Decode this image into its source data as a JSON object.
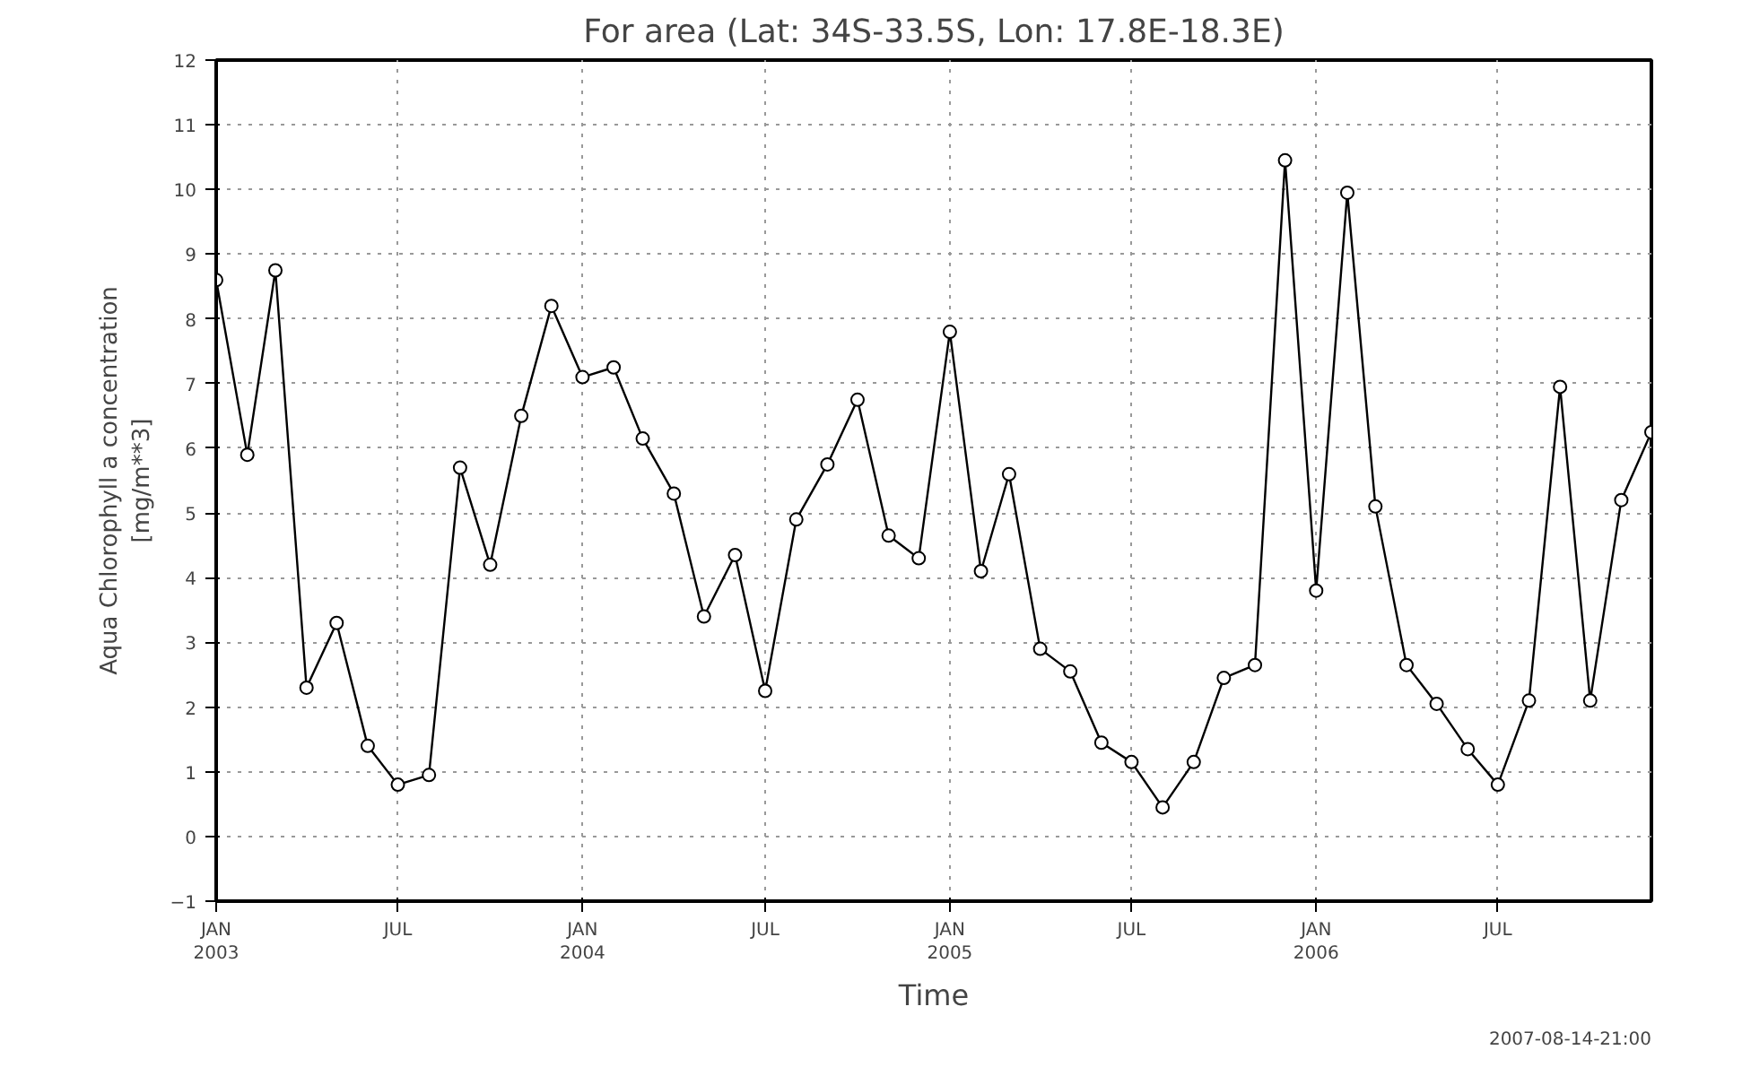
{
  "chart_data": {
    "type": "line",
    "title": "For area (Lat: 34S-33.5S, Lon: 17.8E-18.3E)",
    "xlabel": "Time",
    "ylabel": "Aqua Chlorophyll a concentration\n[mg/m**3]",
    "x": [
      "2003-01",
      "2003-02",
      "2003-03",
      "2003-04",
      "2003-05",
      "2003-06",
      "2003-07",
      "2003-08",
      "2003-09",
      "2003-10",
      "2003-11",
      "2003-12",
      "2004-01",
      "2004-02",
      "2004-03",
      "2004-04",
      "2004-05",
      "2004-06",
      "2004-07",
      "2004-08",
      "2004-09",
      "2004-10",
      "2004-11",
      "2004-12",
      "2005-01",
      "2005-02",
      "2005-03",
      "2005-04",
      "2005-05",
      "2005-06",
      "2005-07",
      "2005-08",
      "2005-09",
      "2005-10",
      "2005-11",
      "2005-12",
      "2006-01",
      "2006-02",
      "2006-03",
      "2006-04",
      "2006-05",
      "2006-06",
      "2006-07",
      "2006-08",
      "2006-09",
      "2006-10",
      "2006-11",
      "2006-12"
    ],
    "series": [
      {
        "color": "#000000",
        "values": [
          8.6,
          5.9,
          8.75,
          2.3,
          3.3,
          1.4,
          0.8,
          0.95,
          5.7,
          4.2,
          6.5,
          8.2,
          7.1,
          7.25,
          6.15,
          5.3,
          3.4,
          4.35,
          2.25,
          4.9,
          5.75,
          6.75,
          4.65,
          4.3,
          7.8,
          4.1,
          5.6,
          2.9,
          2.55,
          1.45,
          1.15,
          0.45,
          1.15,
          2.45,
          2.65,
          10.45,
          3.8,
          9.95,
          5.1,
          2.65,
          2.05,
          1.35,
          0.8,
          2.1,
          6.95,
          2.1,
          5.2,
          6.25
        ]
      }
    ],
    "xlim": [
      "2003-01",
      "2006-12"
    ],
    "xticks": [
      {
        "value": "2003-01",
        "label": "JAN\n2003"
      },
      {
        "value": "2003-07",
        "label": "JUL"
      },
      {
        "value": "2004-01",
        "label": "JAN\n2004"
      },
      {
        "value": "2004-07",
        "label": "JUL"
      },
      {
        "value": "2005-01",
        "label": "JAN\n2005"
      },
      {
        "value": "2005-07",
        "label": "JUL"
      },
      {
        "value": "2006-01",
        "label": "JAN\n2006"
      },
      {
        "value": "2006-07",
        "label": "JUL"
      }
    ],
    "ylim": [
      -1,
      12
    ],
    "yticks": [
      -1,
      0,
      1,
      2,
      3,
      4,
      5,
      6,
      7,
      8,
      9,
      10,
      11,
      12
    ],
    "grid": true,
    "marker": "circle",
    "line_style": "solid",
    "annotations": [
      "2007-08-14-21:00"
    ]
  }
}
